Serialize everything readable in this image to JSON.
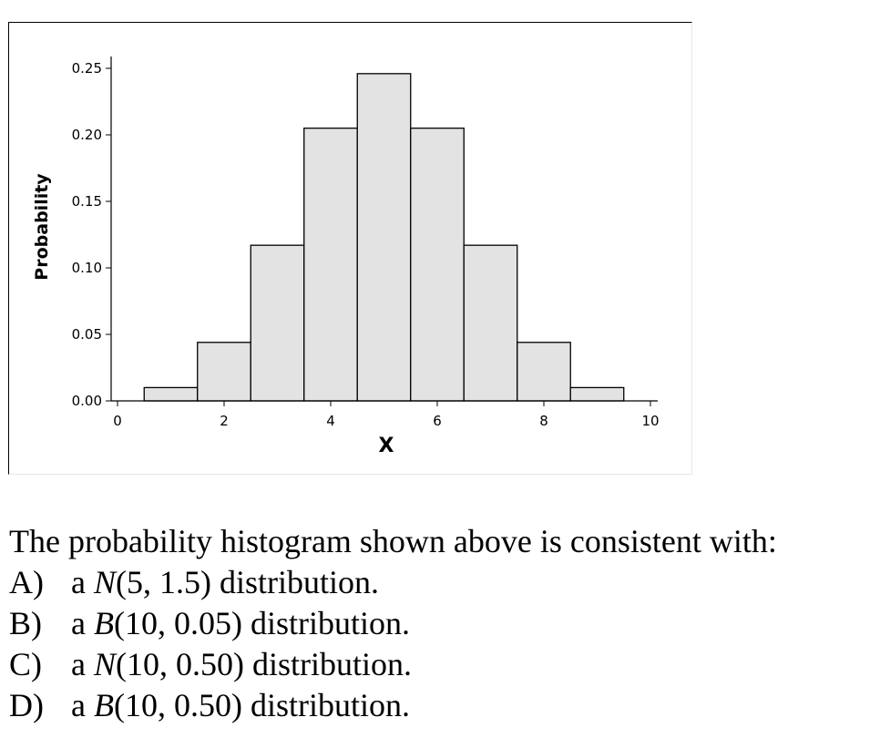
{
  "chart_data": {
    "type": "bar",
    "title": "",
    "xlabel": "X",
    "ylabel": "Probability",
    "x": [
      1,
      2,
      3,
      4,
      5,
      6,
      7,
      8,
      9
    ],
    "values": [
      0.01,
      0.044,
      0.117,
      0.205,
      0.246,
      0.205,
      0.117,
      0.044,
      0.01
    ],
    "bar_width": 1,
    "xlim": [
      0,
      10
    ],
    "ylim": [
      0,
      0.25
    ],
    "xticks": [
      "0",
      "2",
      "4",
      "6",
      "8",
      "10"
    ],
    "yticks": [
      "0.00",
      "0.05",
      "0.10",
      "0.15",
      "0.20",
      "0.25"
    ],
    "grid": false,
    "legend": "none",
    "colors": {
      "bar_fill": "#e3e3e3",
      "bar_edge": "#000000"
    }
  },
  "question": {
    "prompt": "The probability histogram shown above is consistent with:",
    "options": [
      {
        "letter": "A)",
        "prefix": "a ",
        "symbol": "N",
        "params": "(5, 1.5)",
        "suffix": " distribution."
      },
      {
        "letter": "B)",
        "prefix": "a ",
        "symbol": "B",
        "params": "(10, 0.05)",
        "suffix": " distribution."
      },
      {
        "letter": "C)",
        "prefix": "a ",
        "symbol": "N",
        "params": "(10, 0.50)",
        "suffix": " distribution."
      },
      {
        "letter": "D)",
        "prefix": "a ",
        "symbol": "B",
        "params": "(10, 0.50)",
        "suffix": " distribution."
      }
    ]
  }
}
